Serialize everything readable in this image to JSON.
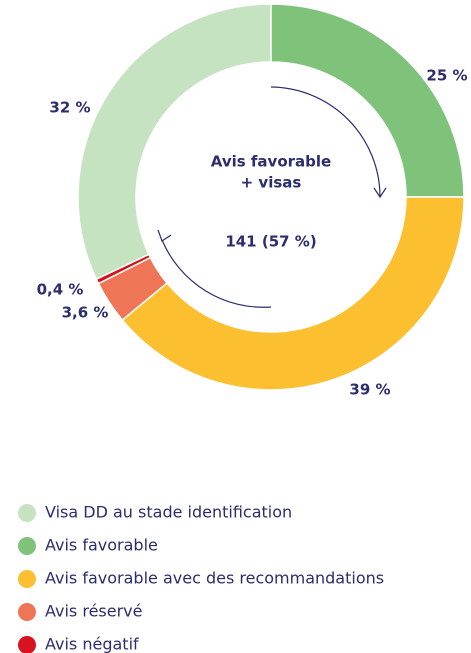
{
  "chart_data": {
    "type": "donut",
    "categories": [
      "Visa DD au stade identification",
      "Avis favorable",
      "Avis favorable avec des recommandations",
      "Avis réservé",
      "Avis négatif"
    ],
    "values": [
      32,
      25,
      39,
      3.6,
      0.4
    ],
    "value_labels": [
      "32 %",
      "25 %",
      "39 %",
      "3,6 %",
      "0,4 %"
    ],
    "colors": [
      "#c6e3c1",
      "#7fc37a",
      "#fcbf30",
      "#ee7656",
      "#d8121e"
    ],
    "center_title": "Avis favorable",
    "center_subtitle": "+ visas",
    "center_value": "141 (57 %)"
  }
}
